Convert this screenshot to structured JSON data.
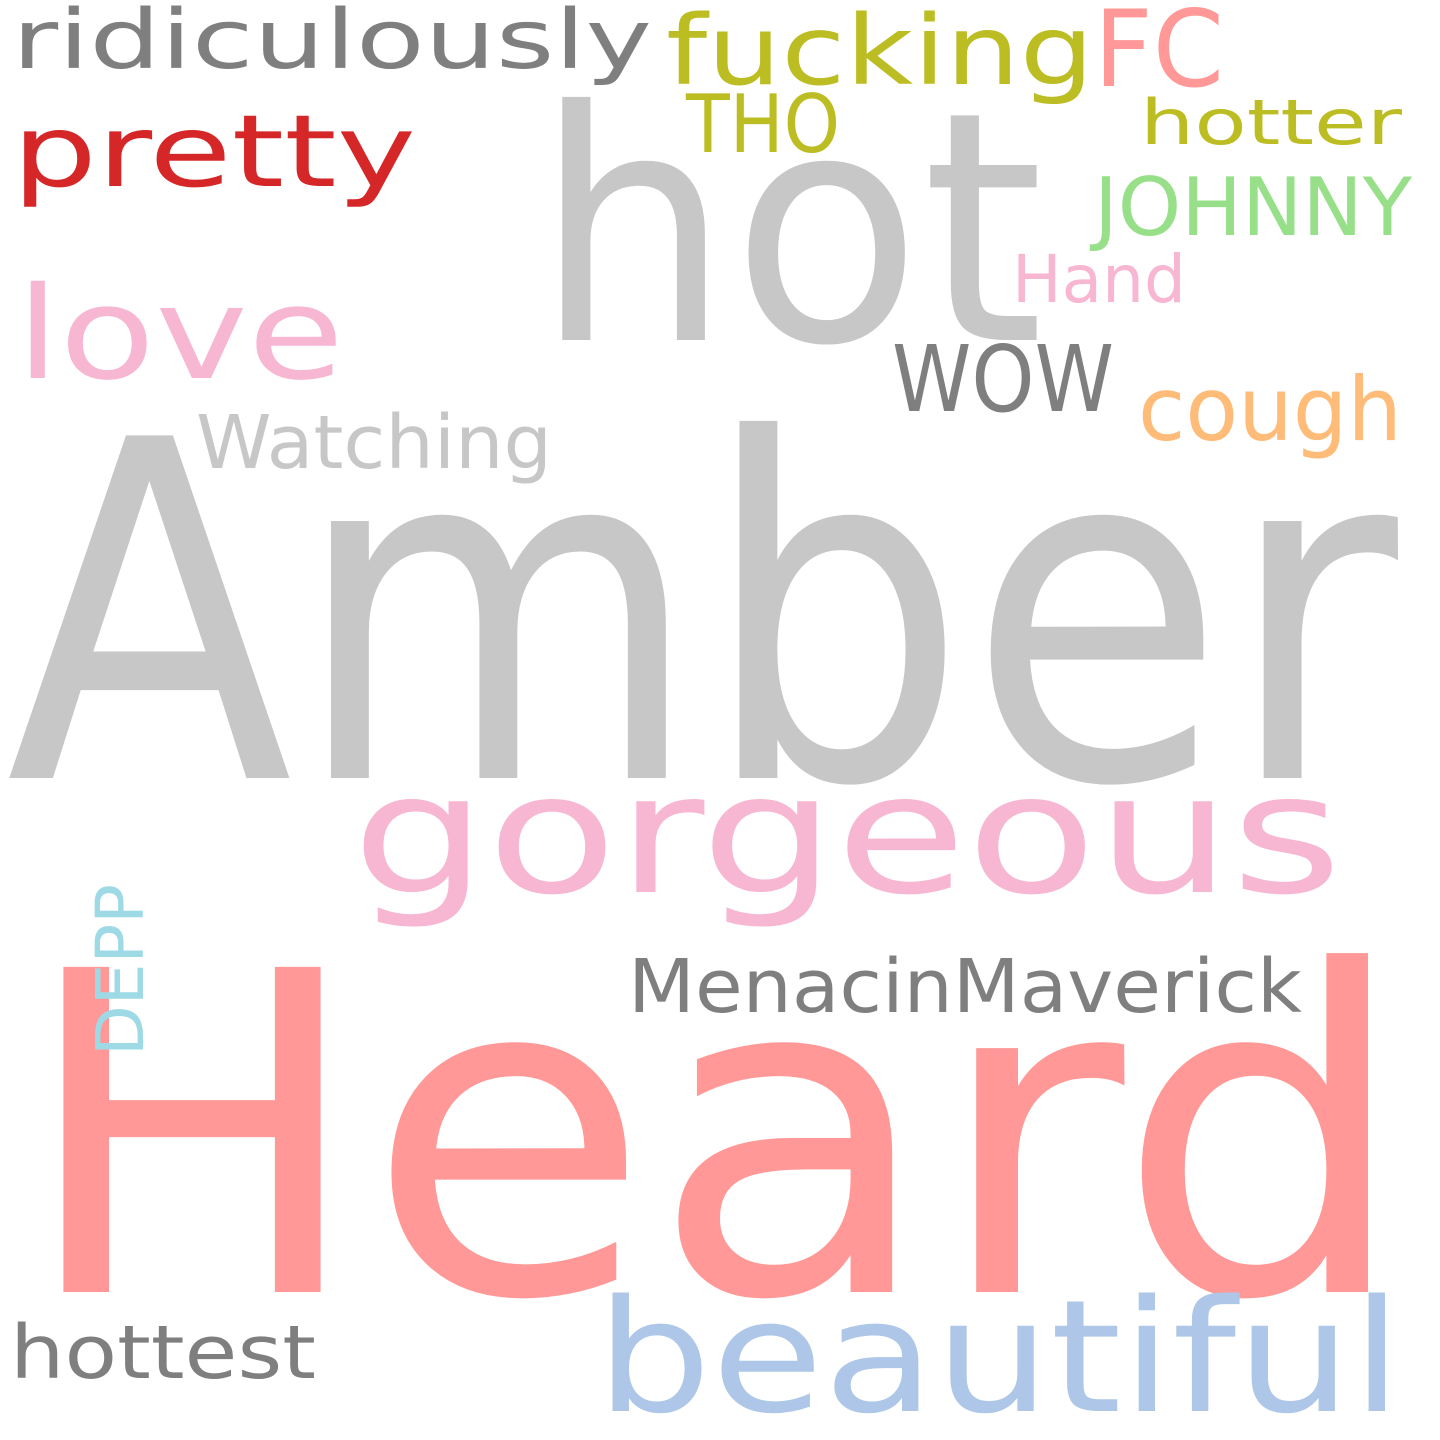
{
  "words": [
    {
      "text": "Heard",
      "color": "#ff9896"
    },
    {
      "text": "Amber",
      "color": "#c7c7c7"
    },
    {
      "text": "hot",
      "color": "#c7c7c7"
    },
    {
      "text": "gorgeous",
      "color": "#f7b6d2"
    },
    {
      "text": "beautiful",
      "color": "#aec7e8"
    },
    {
      "text": "fucking",
      "color": "#bcbd22"
    },
    {
      "text": "ridiculously",
      "color": "#7f7f7f"
    },
    {
      "text": "pretty",
      "color": "#d62728"
    },
    {
      "text": "love",
      "color": "#f7b6d2"
    },
    {
      "text": "FC",
      "color": "#ff9896"
    },
    {
      "text": "MenacinMaverick",
      "color": "#7f7f7f"
    },
    {
      "text": "WOW",
      "color": "#7f7f7f"
    },
    {
      "text": "cough",
      "color": "#ffbb78"
    },
    {
      "text": "Watching",
      "color": "#c7c7c7"
    },
    {
      "text": "hottest",
      "color": "#7f7f7f"
    },
    {
      "text": "JOHNNY",
      "color": "#98df8a"
    },
    {
      "text": "DEPP",
      "color": "#9edae5"
    },
    {
      "text": "hotter",
      "color": "#bcbd22"
    },
    {
      "text": "THO",
      "color": "#bcbd22"
    },
    {
      "text": "Hand",
      "color": "#f7b6d2"
    }
  ]
}
